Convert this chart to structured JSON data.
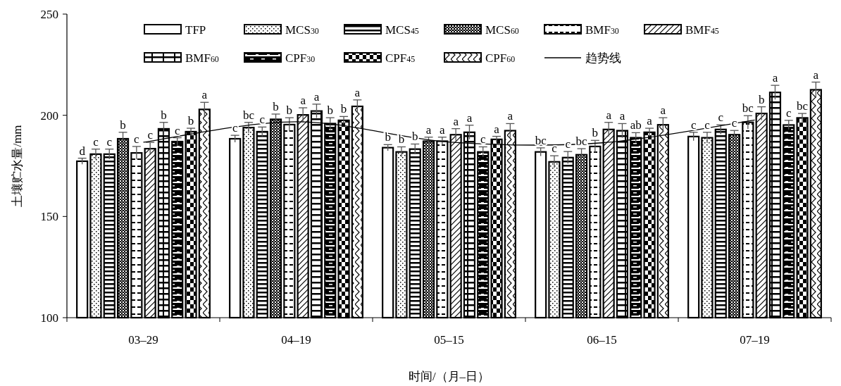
{
  "chart_data": {
    "type": "bar",
    "xlabel": "时间/（月–日）",
    "ylabel": "土壤贮水量/mm",
    "categories": [
      "03–29",
      "04–19",
      "05–15",
      "06–15",
      "07–19"
    ],
    "ylim": [
      100,
      250
    ],
    "yticks": [
      100,
      150,
      200,
      250
    ],
    "legend": "top",
    "series": [
      {
        "name": "TFP",
        "color": "#000000",
        "values": [
          177.3,
          188.4,
          184.0,
          181.9,
          189.5
        ],
        "errors": [
          1.5,
          1.7,
          1.5,
          2,
          2.1
        ],
        "value_labels": [
          "d",
          "c",
          "b",
          "bc",
          "c"
        ]
      },
      {
        "name": "MCS$_{30}$",
        "color": "#000000",
        "values": [
          180.8,
          193.9,
          181.9,
          177.0,
          188.9
        ],
        "errors": [
          2.5,
          2.6,
          2.5,
          3,
          2.7
        ],
        "value_labels": [
          "c",
          "bc",
          "b",
          "c",
          "c"
        ]
      },
      {
        "name": "MCS$_{45}$",
        "color": "#000000",
        "values": [
          180.8,
          191.9,
          183.3,
          179.1,
          193.0
        ],
        "errors": [
          2.5,
          2.3,
          2.5,
          3,
          2.3
        ],
        "value_labels": [
          "c",
          "c",
          "b",
          "c",
          "c"
        ]
      },
      {
        "name": "MCS$_{60}$",
        "color": "#000000",
        "values": [
          188.4,
          198.0,
          187.2,
          180.5,
          190.4
        ],
        "errors": [
          3.2,
          2.6,
          2,
          3,
          2.1
        ],
        "value_labels": [
          "b",
          "b",
          "a",
          "bc",
          "c"
        ]
      },
      {
        "name": "BMF$_{30}$",
        "color": "#000000",
        "values": [
          181.4,
          195.4,
          187.2,
          184.6,
          196.5
        ],
        "errors": [
          3.2,
          3.4,
          2,
          3,
          3.3
        ],
        "value_labels": [
          "c",
          "b",
          "a",
          "b",
          "bc"
        ]
      },
      {
        "name": "BMF$_{45}$",
        "color": "#000000",
        "values": [
          183.5,
          200.2,
          190.4,
          193.0,
          200.9
        ],
        "errors": [
          3.1,
          3.5,
          3,
          3.5,
          3.3
        ],
        "value_labels": [
          "c",
          "a",
          "a",
          "a",
          "b"
        ]
      },
      {
        "name": "BMF$_{60}$",
        "color": "#000000",
        "values": [
          193.3,
          202.1,
          191.6,
          192.4,
          211.3
        ],
        "errors": [
          3.2,
          3.4,
          3.5,
          3.5,
          3.5
        ],
        "value_labels": [
          "b",
          "a",
          "a",
          "a",
          "a"
        ]
      },
      {
        "name": "CPF$_{30}$",
        "color": "#000000",
        "values": [
          187.0,
          195.9,
          181.9,
          188.9,
          195.2
        ],
        "errors": [
          1.9,
          2.9,
          2.5,
          2.5,
          2.3
        ],
        "value_labels": [
          "c",
          "b",
          "c",
          "ab",
          "c"
        ]
      },
      {
        "name": "CPF$_{45}$",
        "color": "#000000",
        "values": [
          191.9,
          197.5,
          188.1,
          191.6,
          198.7
        ],
        "errors": [
          1.7,
          1.9,
          1.5,
          2,
          2.2
        ],
        "value_labels": [
          "b",
          "b",
          "a",
          "a",
          "bc"
        ]
      },
      {
        "name": "CPF$_{60}$",
        "color": "#000000",
        "values": [
          202.9,
          204.4,
          192.4,
          195.3,
          212.6
        ],
        "errors": [
          3.5,
          3.2,
          3.5,
          3.5,
          3.8
        ],
        "value_labels": [
          "a",
          "a",
          "a",
          "a",
          "a"
        ]
      },
      {
        "name": "趋势线",
        "type": "line",
        "color": "#000000",
        "values": [
          186.7,
          196.8,
          186.8,
          186.4,
          197.7
        ]
      }
    ]
  }
}
